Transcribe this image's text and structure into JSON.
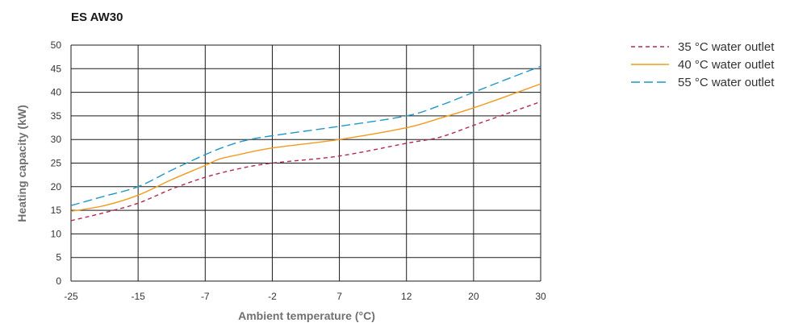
{
  "chart_data": {
    "type": "line",
    "title": "ES AW30",
    "xlabel": "Ambient temperature (°C)",
    "ylabel": "Heating capacity (kW)",
    "x_categories": [
      "-25",
      "-15",
      "-7",
      "-2",
      "7",
      "12",
      "20",
      "30"
    ],
    "ylim": [
      0,
      50
    ],
    "yticks": [
      0,
      5,
      10,
      15,
      20,
      25,
      30,
      35,
      40,
      45,
      50
    ],
    "grid": true,
    "legend_position": "top-right",
    "series": [
      {
        "name": "35 °C water outlet",
        "color": "#b5284f",
        "dash": "5,4",
        "points": [
          [
            0,
            12.8
          ],
          [
            0.5,
            14.5
          ],
          [
            1,
            16.5
          ],
          [
            1.5,
            19.5
          ],
          [
            2,
            22
          ],
          [
            2.5,
            23.8
          ],
          [
            3,
            25
          ],
          [
            4,
            26.5
          ],
          [
            5,
            29.2
          ],
          [
            5.5,
            30.5
          ],
          [
            6,
            33
          ],
          [
            6.5,
            35.5
          ],
          [
            7,
            38
          ]
        ]
      },
      {
        "name": "40 °C water outlet",
        "color": "#f29a1e",
        "dash": "",
        "points": [
          [
            0,
            14.8
          ],
          [
            0.5,
            16
          ],
          [
            1,
            18.2
          ],
          [
            1.5,
            21.5
          ],
          [
            2,
            24.5
          ],
          [
            2.2,
            25.8
          ],
          [
            2.5,
            26.8
          ],
          [
            3,
            28.2
          ],
          [
            4,
            30
          ],
          [
            5,
            32.5
          ],
          [
            5.5,
            34.5
          ],
          [
            6,
            36.7
          ],
          [
            6.5,
            39.2
          ],
          [
            7,
            41.8
          ]
        ]
      },
      {
        "name": "55 °C water outlet",
        "color": "#2196c8",
        "dash": "11,5",
        "points": [
          [
            0,
            16
          ],
          [
            0.5,
            18
          ],
          [
            1,
            20
          ],
          [
            1.5,
            23.5
          ],
          [
            2,
            26.8
          ],
          [
            2.3,
            28.5
          ],
          [
            2.6,
            29.8
          ],
          [
            3,
            30.8
          ],
          [
            4,
            32.8
          ],
          [
            5,
            35
          ],
          [
            5.5,
            37.2
          ],
          [
            6,
            40
          ],
          [
            6.5,
            42.8
          ],
          [
            7,
            45.5
          ]
        ]
      }
    ]
  }
}
